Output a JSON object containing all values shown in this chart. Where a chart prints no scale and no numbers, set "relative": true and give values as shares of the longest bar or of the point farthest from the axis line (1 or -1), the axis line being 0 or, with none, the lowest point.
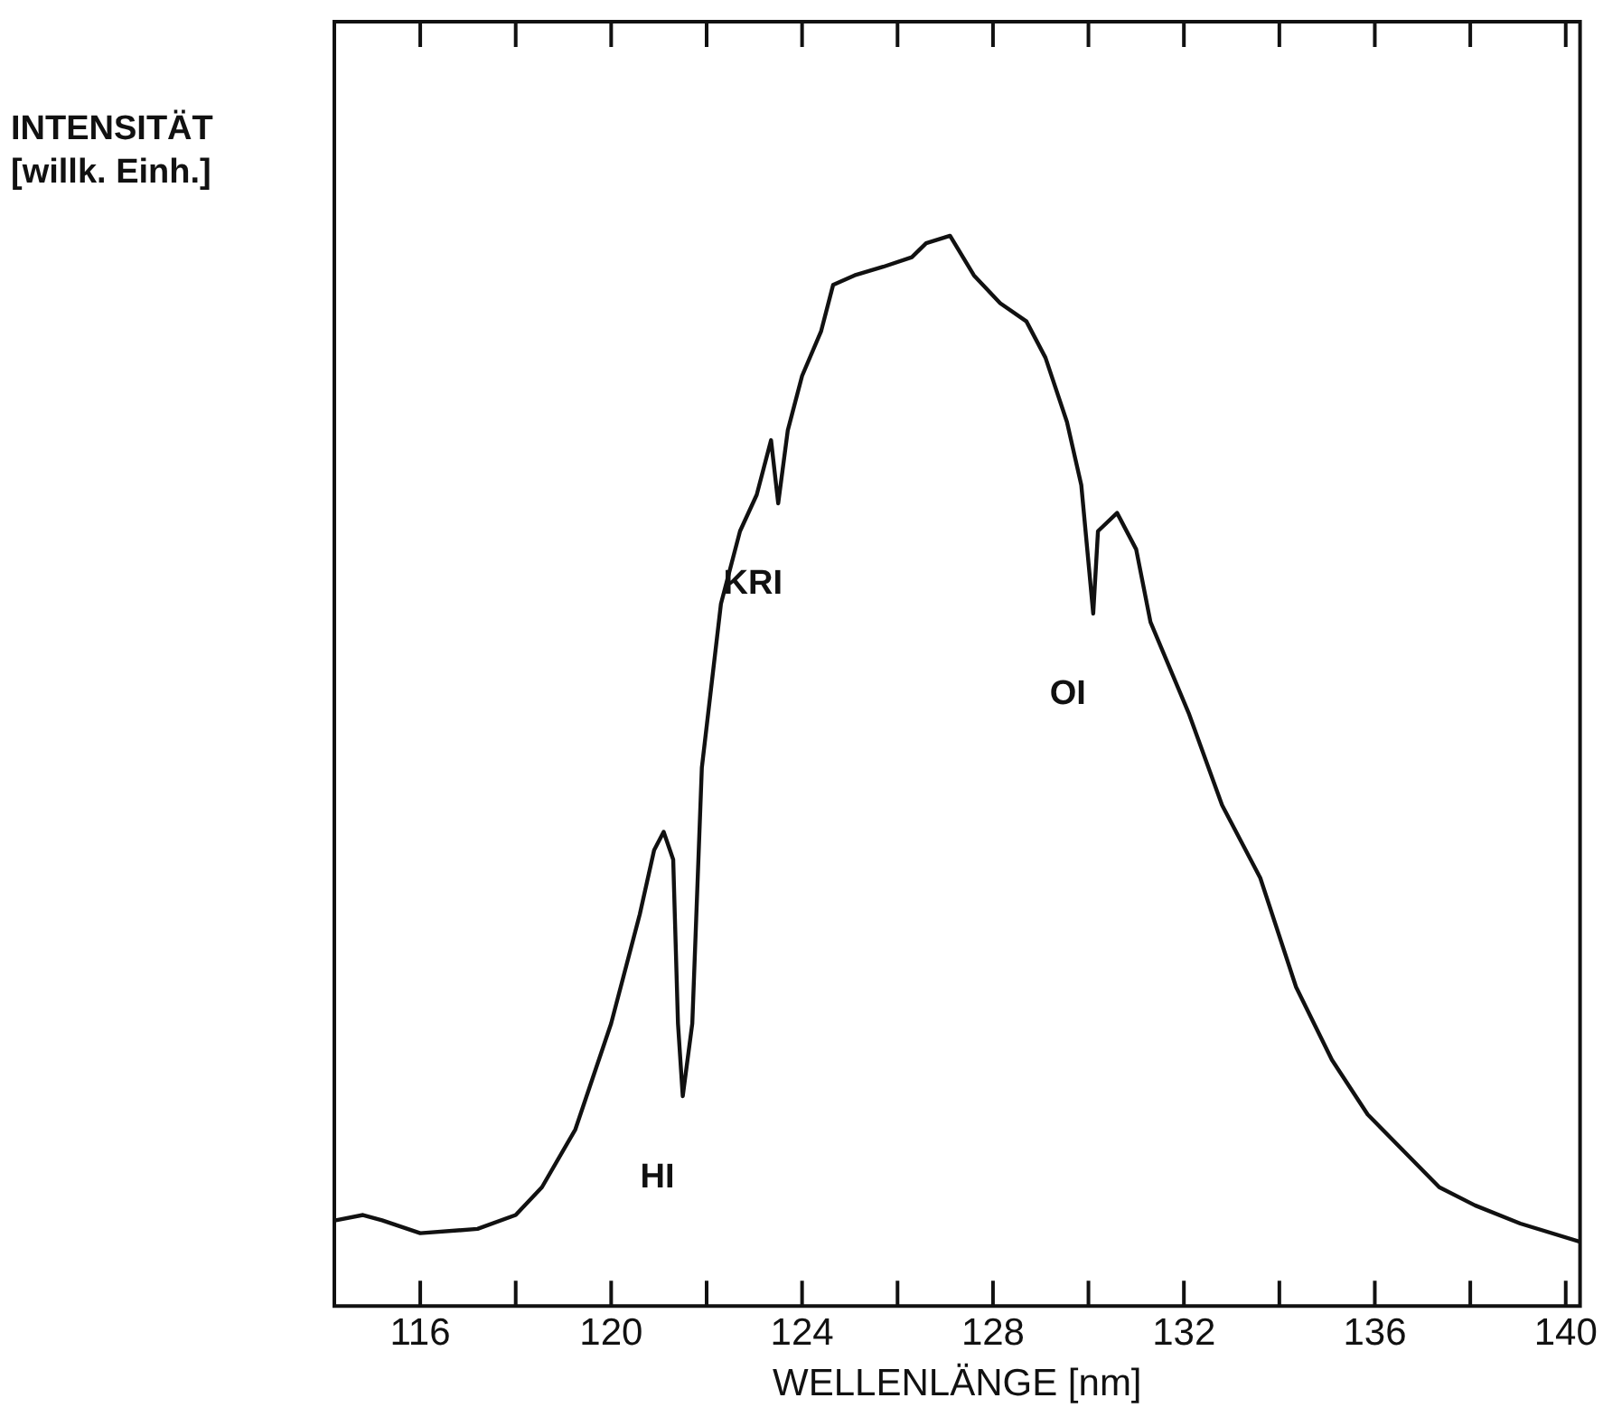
{
  "chart_data": {
    "type": "line",
    "relative": true,
    "xlabel": "WELLENLÄNGE [nm]",
    "ylabel": "INTENSITÄT [willk. Einh.]",
    "xlim": [
      114.2,
      140.3
    ],
    "xticks": [
      116,
      {
        "value": 118,
        "label": null
      },
      120,
      {
        "value": 122,
        "label": null
      },
      124,
      {
        "value": 126,
        "label": null
      },
      128,
      {
        "value": 130,
        "label": null
      },
      132,
      {
        "value": 134,
        "label": null
      },
      136,
      {
        "value": 138,
        "label": null
      },
      140
    ],
    "grid": false,
    "legend": false,
    "marker": "none",
    "line_style": "solid",
    "series": [
      {
        "color": "#111111",
        "x": [
          114.23,
          114.8,
          115.2,
          116,
          117.2,
          118,
          118.55,
          119.25,
          120,
          120.6,
          120.9,
          121.1,
          121.3,
          121.4,
          121.5,
          121.7,
          121.9,
          122.3,
          122.7,
          123.05,
          123.35,
          123.5,
          123.7,
          124,
          124.4,
          124.65,
          125.1,
          125.7,
          126.3,
          126.6,
          127.1,
          127.6,
          128.15,
          128.7,
          129.1,
          129.55,
          129.85,
          130.1,
          130.2,
          130.6,
          131,
          131.3,
          132.1,
          132.8,
          133.6,
          134.35,
          135.1,
          135.85,
          136.6,
          137.35,
          138.1,
          139.05,
          140.3
        ],
        "values": [
          0.08,
          0.085,
          0.08,
          0.068,
          0.072,
          0.085,
          0.111,
          0.165,
          0.264,
          0.366,
          0.426,
          0.443,
          0.417,
          0.264,
          0.196,
          0.264,
          0.503,
          0.656,
          0.724,
          0.758,
          0.809,
          0.75,
          0.818,
          0.869,
          0.911,
          0.954,
          0.963,
          0.971,
          0.98,
          0.993,
          1.0,
          0.963,
          0.937,
          0.92,
          0.886,
          0.826,
          0.767,
          0.647,
          0.724,
          0.741,
          0.707,
          0.639,
          0.554,
          0.468,
          0.4,
          0.298,
          0.23,
          0.179,
          0.145,
          0.111,
          0.094,
          0.077,
          0.06
        ]
      }
    ],
    "annotations": [
      {
        "text": "HI",
        "x": 121.5,
        "y": 0.196
      },
      {
        "text": "KRI",
        "x": 123.5,
        "y": 0.75
      },
      {
        "text": "OI",
        "x": 130.1,
        "y": 0.647
      }
    ]
  }
}
